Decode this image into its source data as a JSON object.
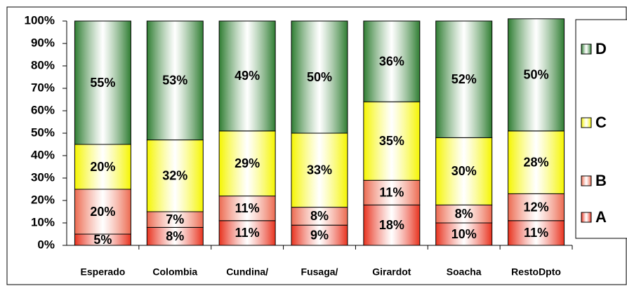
{
  "chart_data": {
    "type": "bar",
    "stacked": true,
    "categories": [
      "Esperado",
      "Colombia",
      "Cundina/",
      "Fusaga/",
      "Girardot",
      "Soacha",
      "RestoDpto"
    ],
    "series": [
      {
        "name": "A",
        "color": "#e8321e",
        "values": [
          5,
          8,
          11,
          9,
          18,
          10,
          11
        ],
        "value_labels": [
          "5%",
          "8%",
          "11%",
          "9%",
          "18%",
          "10%",
          "11%"
        ]
      },
      {
        "name": "B",
        "color": "#ec6a50",
        "values": [
          20,
          7,
          11,
          8,
          11,
          8,
          12
        ],
        "value_labels": [
          "20%",
          "7%",
          "11%",
          "8%",
          "11%",
          "8%",
          "12%"
        ]
      },
      {
        "name": "C",
        "color": "#f5f500",
        "values": [
          20,
          32,
          29,
          33,
          35,
          30,
          28
        ],
        "value_labels": [
          "20%",
          "32%",
          "29%",
          "33%",
          "35%",
          "30%",
          "28%"
        ]
      },
      {
        "name": "D",
        "color": "#2f7d32",
        "values": [
          55,
          53,
          49,
          50,
          36,
          52,
          50
        ],
        "value_labels": [
          "55%",
          "53%",
          "49%",
          "50%",
          "36%",
          "52%",
          "50%"
        ]
      }
    ],
    "ylim": [
      0,
      100
    ],
    "yticks": [
      {
        "value": 0,
        "label": "0%"
      },
      {
        "value": 10,
        "label": "10%"
      },
      {
        "value": 20,
        "label": "20%"
      },
      {
        "value": 30,
        "label": "30%"
      },
      {
        "value": 40,
        "label": "40%"
      },
      {
        "value": 50,
        "label": "50%"
      },
      {
        "value": 60,
        "label": "60%"
      },
      {
        "value": 70,
        "label": "70%"
      },
      {
        "value": 80,
        "label": "80%"
      },
      {
        "value": 90,
        "label": "90%"
      },
      {
        "value": 100,
        "label": "100%"
      }
    ],
    "legend": "right"
  }
}
